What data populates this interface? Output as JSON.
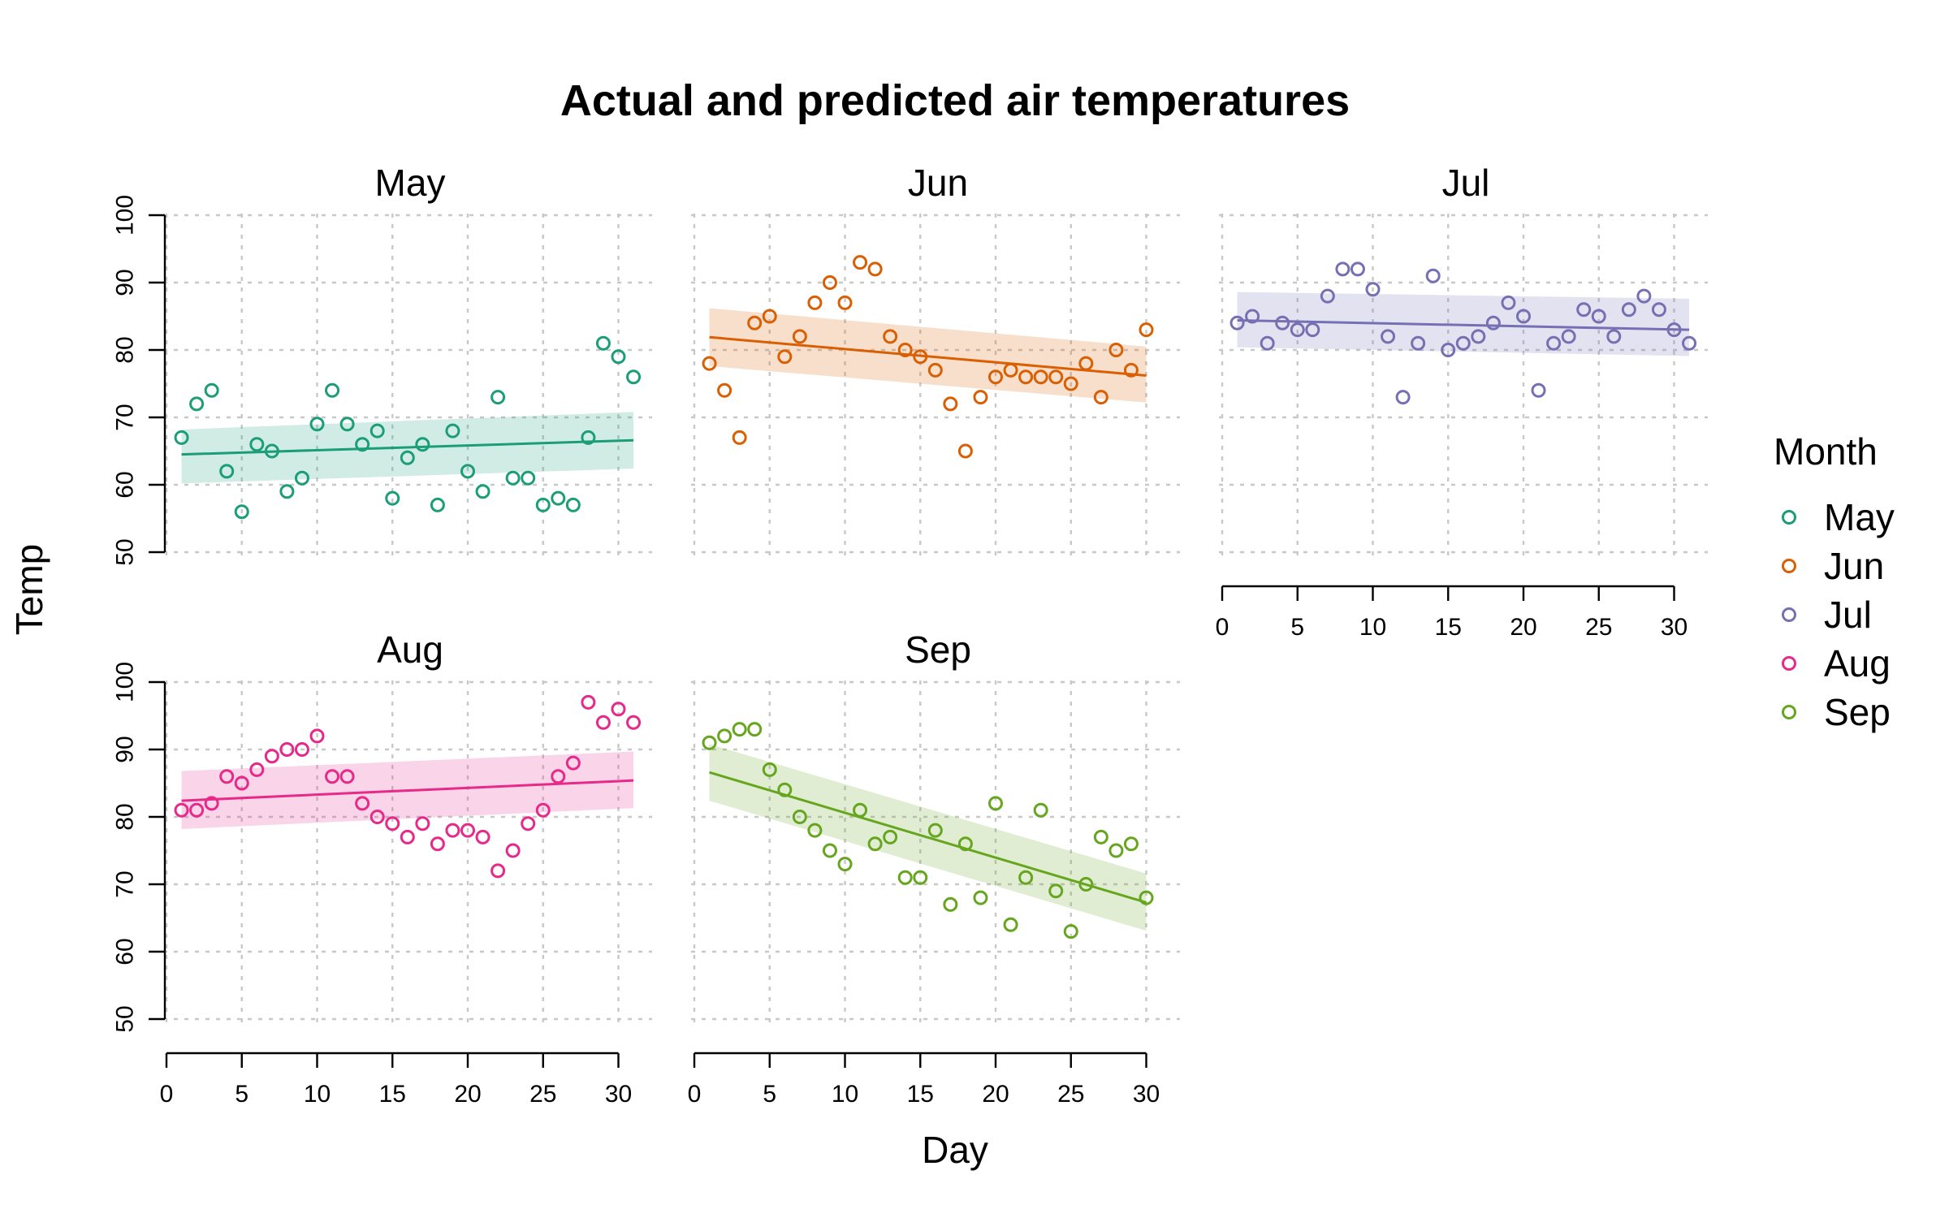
{
  "chart_data": {
    "type": "scatter",
    "title": "Actual and predicted air temperatures",
    "xlabel": "Day",
    "ylabel": "Temp",
    "xlim": [
      0,
      31
    ],
    "ylim": [
      50,
      100
    ],
    "x_ticks": [
      0,
      5,
      10,
      15,
      20,
      25,
      30
    ],
    "y_ticks": [
      50,
      60,
      70,
      80,
      90,
      100
    ],
    "grid": true,
    "legend": {
      "title": "Month",
      "placement": "right"
    },
    "series": [
      {
        "name": "May",
        "color": "#1b9e77",
        "x": [
          1,
          2,
          3,
          4,
          5,
          6,
          7,
          8,
          9,
          10,
          11,
          12,
          13,
          14,
          15,
          16,
          17,
          18,
          19,
          20,
          21,
          22,
          23,
          24,
          25,
          26,
          27,
          28,
          29,
          30,
          31
        ],
        "y": [
          67,
          72,
          74,
          62,
          56,
          66,
          65,
          59,
          61,
          69,
          74,
          69,
          66,
          68,
          58,
          64,
          66,
          57,
          68,
          62,
          59,
          73,
          61,
          61,
          57,
          58,
          57,
          67,
          81,
          79,
          76
        ],
        "fit": {
          "x": [
            1,
            31
          ],
          "y": [
            64.5,
            66.6
          ],
          "lower": [
            60.2,
            62.4
          ],
          "upper": [
            68.2,
            70.8
          ]
        }
      },
      {
        "name": "Jun",
        "color": "#d95f02",
        "x": [
          1,
          2,
          3,
          4,
          5,
          6,
          7,
          8,
          9,
          10,
          11,
          12,
          13,
          14,
          15,
          16,
          17,
          18,
          19,
          20,
          21,
          22,
          23,
          24,
          25,
          26,
          27,
          28,
          29,
          30
        ],
        "y": [
          78,
          74,
          67,
          84,
          85,
          79,
          82,
          87,
          90,
          87,
          93,
          92,
          82,
          80,
          79,
          77,
          72,
          65,
          73,
          76,
          77,
          76,
          76,
          76,
          75,
          78,
          73,
          80,
          77,
          83
        ],
        "fit": {
          "x": [
            1,
            30
          ],
          "y": [
            81.9,
            76.2
          ],
          "lower": [
            77.6,
            72.2
          ],
          "upper": [
            86.2,
            80.5
          ]
        }
      },
      {
        "name": "Jul",
        "color": "#7570b3",
        "x": [
          1,
          2,
          3,
          4,
          5,
          6,
          7,
          8,
          9,
          10,
          11,
          12,
          13,
          14,
          15,
          16,
          17,
          18,
          19,
          20,
          21,
          22,
          23,
          24,
          25,
          26,
          27,
          28,
          29,
          30,
          31
        ],
        "y": [
          84,
          85,
          81,
          84,
          83,
          83,
          88,
          92,
          92,
          89,
          82,
          73,
          81,
          91,
          80,
          81,
          82,
          84,
          87,
          85,
          74,
          81,
          82,
          86,
          85,
          82,
          86,
          88,
          86,
          83,
          81
        ],
        "fit": {
          "x": [
            1,
            31
          ],
          "y": [
            84.4,
            83.0
          ],
          "lower": [
            80.4,
            79.1
          ],
          "upper": [
            88.6,
            87.6
          ]
        }
      },
      {
        "name": "Aug",
        "color": "#e7298a",
        "x": [
          1,
          2,
          3,
          4,
          5,
          6,
          7,
          8,
          9,
          10,
          11,
          12,
          13,
          14,
          15,
          16,
          17,
          18,
          19,
          20,
          21,
          22,
          23,
          24,
          25,
          26,
          27,
          28,
          29,
          30,
          31
        ],
        "y": [
          81,
          81,
          82,
          86,
          85,
          87,
          89,
          90,
          90,
          92,
          86,
          86,
          82,
          80,
          79,
          77,
          79,
          76,
          78,
          78,
          77,
          72,
          75,
          79,
          81,
          86,
          88,
          97,
          94,
          96,
          94
        ],
        "fit": {
          "x": [
            1,
            31
          ],
          "y": [
            82.4,
            85.4
          ],
          "lower": [
            78.2,
            81.3
          ],
          "upper": [
            86.8,
            89.7
          ]
        }
      },
      {
        "name": "Sep",
        "color": "#66a61e",
        "x": [
          1,
          2,
          3,
          4,
          5,
          6,
          7,
          8,
          9,
          10,
          11,
          12,
          13,
          14,
          15,
          16,
          17,
          18,
          19,
          20,
          21,
          22,
          23,
          24,
          25,
          26,
          27,
          28,
          29,
          30
        ],
        "y": [
          91,
          92,
          93,
          93,
          87,
          84,
          80,
          78,
          75,
          73,
          81,
          76,
          77,
          71,
          71,
          78,
          67,
          76,
          68,
          82,
          64,
          71,
          81,
          69,
          63,
          70,
          77,
          75,
          76,
          68
        ],
        "fit": {
          "x": [
            1,
            30
          ],
          "y": [
            86.6,
            67.3
          ],
          "lower": [
            82.4,
            63.1
          ],
          "upper": [
            90.8,
            71.6
          ]
        }
      }
    ]
  }
}
